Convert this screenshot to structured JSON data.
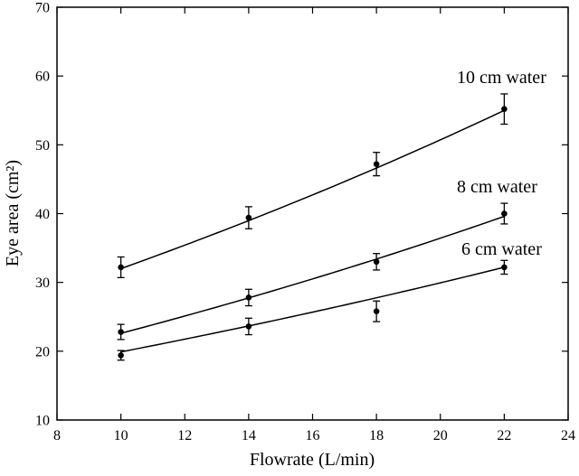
{
  "chart_data": {
    "type": "scatter",
    "title": "",
    "xlabel": "Flowrate (L/min)",
    "ylabel": "Eye area (cm²)",
    "xlim": [
      8,
      24
    ],
    "ylim": [
      10,
      70
    ],
    "xticks": [
      8,
      10,
      12,
      14,
      16,
      18,
      20,
      22,
      24
    ],
    "yticks": [
      10,
      20,
      30,
      40,
      50,
      60,
      70
    ],
    "grid": false,
    "legend": "none",
    "series": [
      {
        "name": "10 cm water",
        "x": [
          10,
          14,
          18,
          22
        ],
        "y": [
          32.2,
          39.4,
          47.2,
          55.2
        ],
        "err": [
          1.5,
          1.6,
          1.7,
          2.2
        ],
        "fit_start": 32.0,
        "fit_end": 55.0,
        "fit_growth": 0.0227
      },
      {
        "name": "8 cm water",
        "x": [
          10,
          14,
          18,
          22
        ],
        "y": [
          22.8,
          27.8,
          33.0,
          40.0
        ],
        "err": [
          1.1,
          1.2,
          1.2,
          1.5
        ],
        "fit_start": 22.6,
        "fit_end": 39.6,
        "fit_growth": 0.0233
      },
      {
        "name": "6 cm water",
        "x": [
          10,
          14,
          18,
          22
        ],
        "y": [
          19.4,
          23.6,
          25.8,
          32.2
        ],
        "err": [
          0.7,
          1.2,
          1.5,
          1.0
        ],
        "fit_start": 19.9,
        "fit_end": 32.2,
        "fit_growth": 0.0202
      }
    ]
  }
}
